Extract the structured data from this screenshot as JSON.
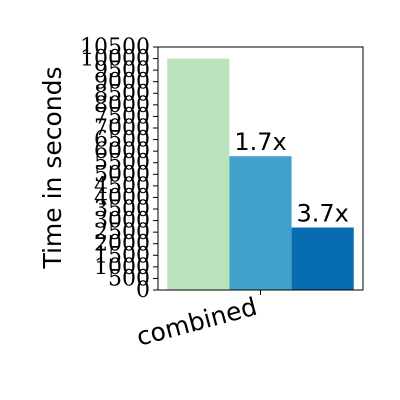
{
  "chart_data": {
    "type": "bar",
    "categories": [
      "combined"
    ],
    "series": [
      {
        "values": [
          10000
        ],
        "color": "#bbe4bc",
        "label": ""
      },
      {
        "values": [
          5780
        ],
        "color": "#41a1cb",
        "label": "1.7x"
      },
      {
        "values": [
          2700
        ],
        "color": "#086cb0",
        "label": "3.7x"
      }
    ],
    "ylabel": "Time in seconds",
    "xlabel": "",
    "ylim": [
      0,
      10500
    ],
    "yticks": [
      0,
      500,
      1000,
      1500,
      2000,
      2500,
      3000,
      3500,
      4000,
      4500,
      5000,
      5500,
      6000,
      6500,
      7000,
      7500,
      8000,
      8500,
      9000,
      9500,
      10000,
      10500
    ],
    "grid": false,
    "legend": "none"
  }
}
